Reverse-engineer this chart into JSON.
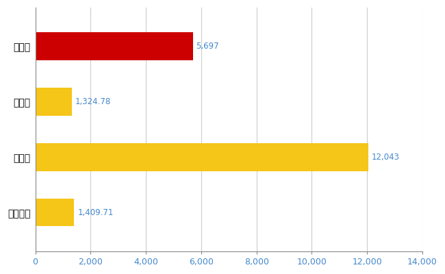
{
  "categories": [
    "川口市",
    "県平均",
    "県最大",
    "全国平均"
  ],
  "values": [
    5697,
    1324.78,
    12043,
    1409.71
  ],
  "labels": [
    "5,697",
    "1,324.78",
    "12,043",
    "1,409.71"
  ],
  "bar_colors": [
    "#cc0000",
    "#f5c518",
    "#f5c518",
    "#f5c518"
  ],
  "background_color": "#ffffff",
  "xlim": [
    0,
    14000
  ],
  "xticks": [
    0,
    2000,
    4000,
    6000,
    8000,
    10000,
    12000,
    14000
  ],
  "grid_color": "#cccccc",
  "label_color": "#4488cc",
  "label_fontsize": 8.5,
  "tick_fontsize": 9,
  "ytick_fontsize": 10,
  "bar_height": 0.5
}
